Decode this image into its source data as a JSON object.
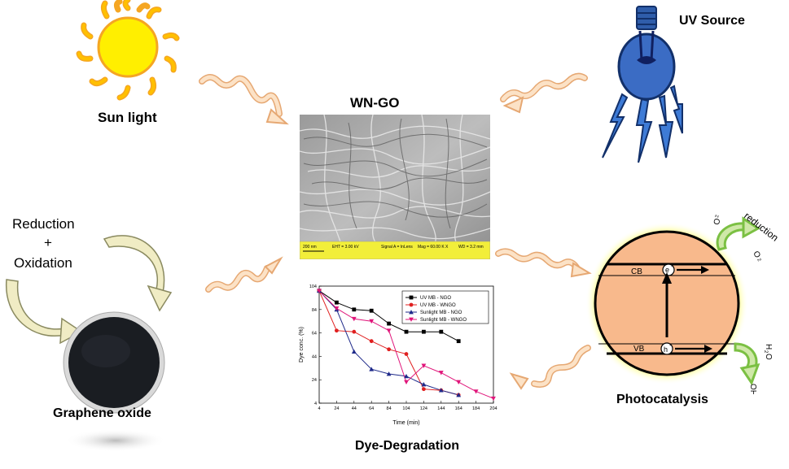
{
  "labels": {
    "sunlight": "Sun light",
    "uv_source": "UV Source",
    "wn_go": "WN-GO",
    "reduction": "Reduction",
    "plus": "+",
    "oxidation": "Oxidation",
    "graphene_oxide": "Graphene oxide",
    "dye_degradation": "Dye-Degradation",
    "photocatalysis": "Photocatalysis"
  },
  "sem": {
    "scale": "200 nm",
    "eht": "EHT = 3.00 kV",
    "signal": "Signal A = InLens",
    "mag": "Mag = 60.00 K X",
    "wd": "WD = 3.2 mm"
  },
  "photocat": {
    "cb": "CB",
    "vb": "VB",
    "electron": "e",
    "hole": "h",
    "reduction": "reduction",
    "o2": "O",
    "o2_radical": "O",
    "h2o": "H",
    "ho_radical": "HO"
  },
  "colors": {
    "sun": "#FFEF00",
    "sun_rays": "#F5A623",
    "bulb": "#2F5DAA",
    "arrow": "#F4C38F",
    "photocat_fill": "#F8B98C",
    "photocat_glow": "#FFFF66",
    "curved_arrow": "#E8E2B0"
  },
  "chart_data": {
    "type": "line",
    "xlabel": "Time (min)",
    "ylabel": "Dye conc. (%)",
    "x_ticks": [
      4,
      24,
      44,
      64,
      84,
      104,
      124,
      144,
      164,
      184,
      204
    ],
    "y_ticks": [
      4,
      24,
      44,
      64,
      84,
      104
    ],
    "xlim": [
      4,
      204
    ],
    "ylim": [
      4,
      104
    ],
    "legend_position": "top-right",
    "series": [
      {
        "name": "UV MB - NGO",
        "color": "#000000",
        "marker": "square",
        "points": [
          [
            4,
            100
          ],
          [
            24,
            90
          ],
          [
            44,
            84
          ],
          [
            64,
            83
          ],
          [
            84,
            72
          ],
          [
            104,
            65
          ],
          [
            124,
            65
          ],
          [
            144,
            65
          ],
          [
            164,
            57
          ]
        ]
      },
      {
        "name": "UV MB - WNGO",
        "color": "#E02020",
        "marker": "circle",
        "points": [
          [
            4,
            100
          ],
          [
            24,
            66
          ],
          [
            44,
            65
          ],
          [
            64,
            57
          ],
          [
            84,
            50
          ],
          [
            104,
            46
          ],
          [
            124,
            16
          ],
          [
            144,
            15
          ],
          [
            164,
            11
          ]
        ]
      },
      {
        "name": "Sunlight MB - NGO",
        "color": "#1F2A8A",
        "marker": "triangle-up",
        "points": [
          [
            4,
            100
          ],
          [
            24,
            84
          ],
          [
            44,
            48
          ],
          [
            64,
            33
          ],
          [
            84,
            29
          ],
          [
            104,
            27
          ],
          [
            124,
            20
          ],
          [
            144,
            15
          ],
          [
            164,
            11
          ]
        ]
      },
      {
        "name": "Sunlight MB - WNGO",
        "color": "#E0157A",
        "marker": "triangle-down",
        "points": [
          [
            4,
            100
          ],
          [
            24,
            85
          ],
          [
            44,
            76
          ],
          [
            64,
            74
          ],
          [
            84,
            66
          ],
          [
            104,
            22
          ],
          [
            124,
            36
          ],
          [
            144,
            30
          ],
          [
            164,
            22
          ],
          [
            184,
            14
          ],
          [
            204,
            8
          ]
        ]
      }
    ]
  }
}
